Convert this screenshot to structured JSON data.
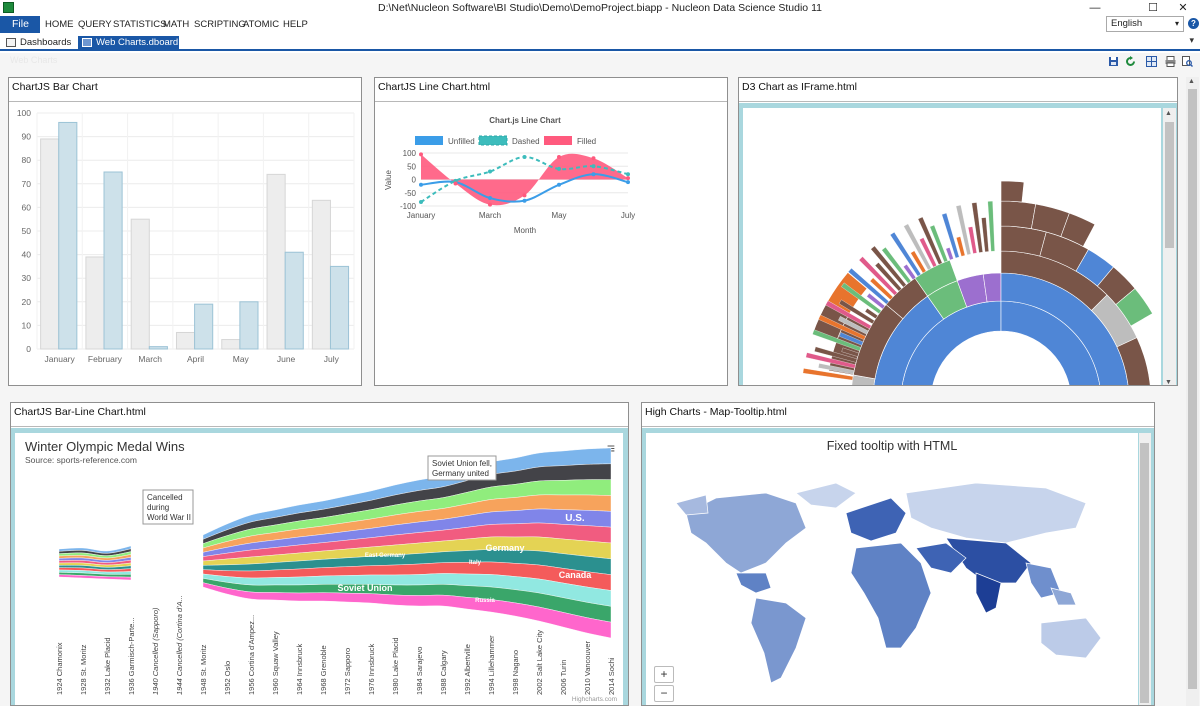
{
  "window": {
    "title": "D:\\Net\\Nucleon Software\\BI Studio\\Demo\\DemoProject.biapp - Nucleon Data Science Studio 11",
    "minimize": "—",
    "maximize": "☐",
    "close": "✕"
  },
  "menu": {
    "file": "File",
    "items": [
      "HOME",
      "QUERY",
      "STATISTICS",
      "MATH",
      "SCRIPTING",
      "ATOMIC",
      "HELP"
    ],
    "language": "English",
    "help": "?"
  },
  "tabs": {
    "items": [
      {
        "label": "Dashboards"
      },
      {
        "label": "Web Charts.dboard"
      }
    ],
    "close": "✕",
    "overflow": "▾"
  },
  "workspace": {
    "title": "Web Charts"
  },
  "panels": {
    "bar": {
      "title": "ChartJS Bar Chart",
      "chart_data": {
        "type": "bar",
        "categories": [
          "January",
          "February",
          "March",
          "April",
          "May",
          "June",
          "July"
        ],
        "series": [
          {
            "values": [
              89,
              39,
              55,
              7,
              4,
              74,
              63
            ],
            "color": "#ededed"
          },
          {
            "values": [
              96,
              75,
              1,
              19,
              20,
              41,
              35
            ],
            "color": "#cde1ea"
          }
        ],
        "ylim": [
          0,
          100
        ],
        "yticks": [
          0,
          10,
          20,
          30,
          40,
          50,
          60,
          70,
          80,
          90,
          100
        ],
        "grid": true
      }
    },
    "line": {
      "title": "ChartJS Line Chart.html",
      "chart_data": {
        "type": "line",
        "title": "Chart.js Line Chart",
        "categories": [
          "January",
          "February",
          "March",
          "April",
          "May",
          "June",
          "July"
        ],
        "xticks": [
          "January",
          "March",
          "May",
          "July"
        ],
        "xlabel": "Month",
        "ylabel": "Value",
        "ylim": [
          -100,
          100
        ],
        "yticks": [
          100,
          50,
          0,
          -50,
          -100
        ],
        "series": [
          {
            "name": "Unfilled",
            "color": "#3b9de8",
            "values": [
              -20,
              -10,
              -70,
              -80,
              -20,
              20,
              -10
            ]
          },
          {
            "name": "Dashed",
            "color": "#3dbcbc",
            "values": [
              -85,
              -5,
              30,
              85,
              40,
              50,
              20
            ]
          },
          {
            "name": "Filled",
            "color": "#ff5a7e",
            "values": [
              95,
              -15,
              -95,
              -60,
              85,
              80,
              5
            ]
          }
        ]
      }
    },
    "d3": {
      "title": "D3 Chart as IFrame.html"
    },
    "stream": {
      "title": "ChartJS Bar-Line Chart.html",
      "chart_title": "Winter Olympic Medal Wins",
      "source": "Source: sports-reference.com",
      "annotation_ww2": [
        "Cancelled",
        "during",
        "World War II"
      ],
      "annotation_ussr": [
        "Soviet Union fell,",
        "Germany united"
      ],
      "labels": [
        "East Germany",
        "Germany",
        "Italy",
        "Soviet Union",
        "Russia",
        "U.S.",
        "Canada"
      ],
      "games": [
        "1924 Chamonix",
        "1928 St. Moritz",
        "1932 Lake Placid",
        "1936 Garmisch-Parte...",
        "1940 Cancelled (Sapporo)",
        "1944 Cancelled (Cortina d'A...",
        "1948 St. Moritz",
        "1952 Oslo",
        "1956 Cortina d'Ampez...",
        "1960 Squaw Valley",
        "1964 Innsbruck",
        "1968 Grenoble",
        "1972 Sapporo",
        "1976 Innsbruck",
        "1980 Lake Placid",
        "1984 Sarajevo",
        "1988 Calgary",
        "1992 Albertville",
        "1994 Lillehammer",
        "1998 Nagano",
        "2002 Salt Lake City",
        "2006 Turin",
        "2010 Vancouver",
        "2014 Sochi"
      ],
      "credit": "Highcharts.com",
      "menu_icon": "≡"
    },
    "map": {
      "title": "High Charts -  Map-Tooltip.html",
      "chart_title": "Fixed tooltip with HTML",
      "zoom_in": "+",
      "zoom_out": "−"
    }
  }
}
